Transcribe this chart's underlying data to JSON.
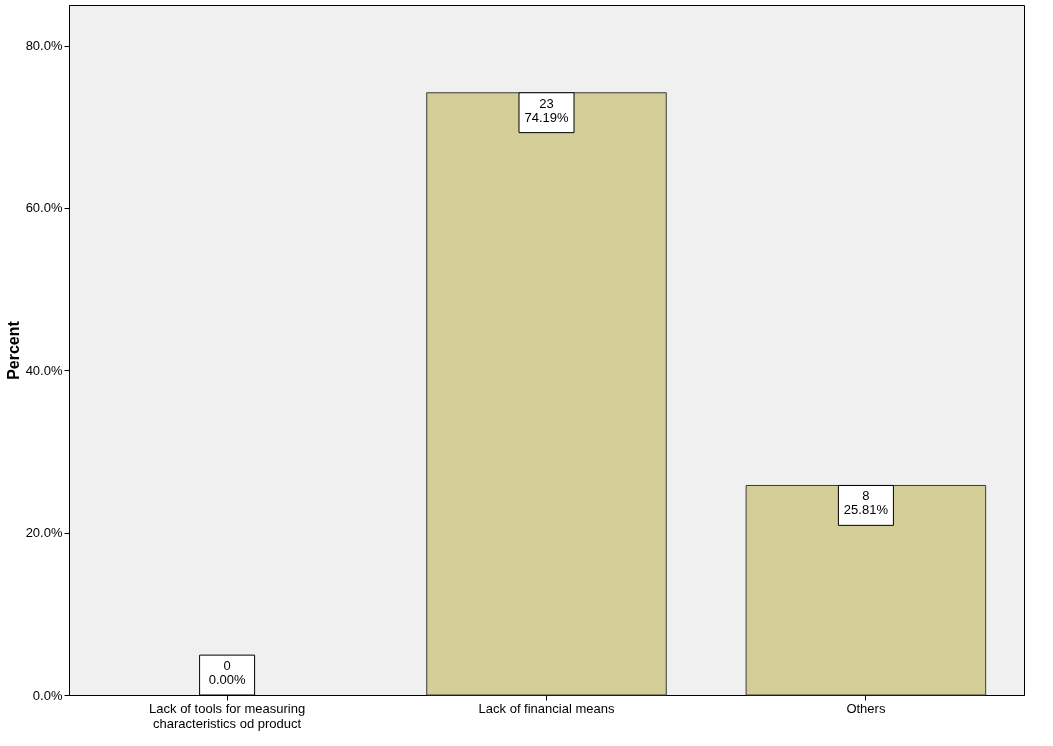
{
  "chart_data": {
    "type": "bar",
    "ylabel": "Percent",
    "categories": [
      "Lack of tools for measuring\ncharacteristics od product",
      "Lack of financial means",
      "Others"
    ],
    "values": [
      0,
      74.19,
      25.81
    ],
    "value_labels": [
      "0\n0.00%",
      "23\n74.19%",
      "8\n25.81%"
    ],
    "color": "#d3ce98",
    "ylim": [
      0,
      85
    ],
    "yticks": [
      {
        "value": 0,
        "label": "0.0%"
      },
      {
        "value": 20,
        "label": "20.0%"
      },
      {
        "value": 40,
        "label": "40.0%"
      },
      {
        "value": 60,
        "label": "60.0%"
      },
      {
        "value": 80,
        "label": "80.0%"
      }
    ],
    "grid": false
  }
}
